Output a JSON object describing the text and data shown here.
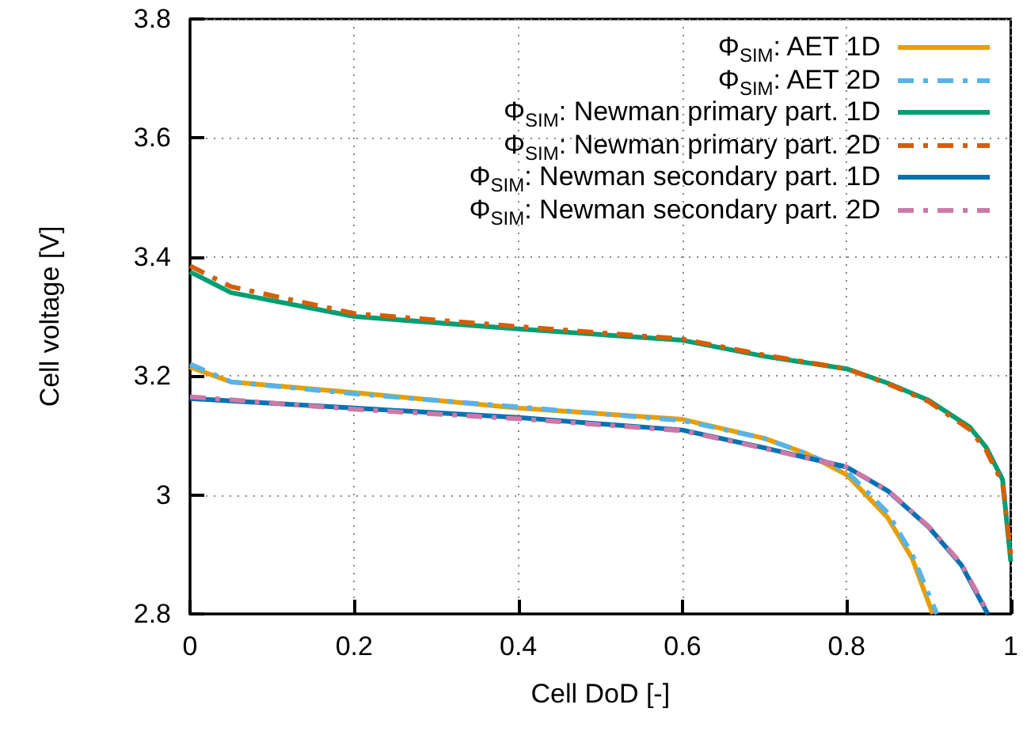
{
  "chart_data": {
    "type": "line",
    "xlabel": "Cell DoD [-]",
    "ylabel": "Cell voltage [V]",
    "xlim": [
      0,
      1
    ],
    "xticks": [
      0,
      0.2,
      0.4,
      0.6,
      0.8,
      1
    ],
    "ylim": [
      2.8,
      3.8
    ],
    "yticks": [
      2.8,
      3,
      3.2,
      3.4,
      3.6,
      3.8
    ],
    "grid": true,
    "legend": "top right",
    "marker": "none",
    "series": [
      {
        "name": "Φ$_{SIM}$: AET 1D",
        "color": "#e69f00",
        "line_style": "solid",
        "x": [
          0,
          0.05,
          0.2,
          0.4,
          0.6,
          0.7,
          0.75,
          0.8,
          0.85,
          0.88,
          0.905
        ],
        "values": [
          3.215,
          3.19,
          3.172,
          3.146,
          3.127,
          3.095,
          3.07,
          3.034,
          2.962,
          2.893,
          2.8
        ]
      },
      {
        "name": "Φ$_{SIM}$: AET 2D",
        "color": "#56b4e9",
        "line_style": "dashed",
        "x": [
          0,
          0.05,
          0.2,
          0.4,
          0.6,
          0.7,
          0.75,
          0.8,
          0.85,
          0.88,
          0.91
        ],
        "values": [
          3.22,
          3.19,
          3.17,
          3.148,
          3.125,
          3.095,
          3.07,
          3.04,
          2.97,
          2.9,
          2.8
        ]
      },
      {
        "name": "Φ$_{SIM}$: Newman primary part. 1D",
        "color": "#009e73",
        "line_style": "solid",
        "x": [
          0,
          0.05,
          0.2,
          0.4,
          0.6,
          0.7,
          0.8,
          0.85,
          0.9,
          0.95,
          0.97,
          0.99,
          1
        ],
        "values": [
          3.375,
          3.34,
          3.3,
          3.279,
          3.26,
          3.233,
          3.212,
          3.188,
          3.159,
          3.114,
          3.08,
          3.026,
          2.888
        ]
      },
      {
        "name": "Φ$_{SIM}$: Newman primary part. 2D",
        "color": "#d55e00",
        "line_style": "dashed",
        "x": [
          0,
          0.05,
          0.2,
          0.4,
          0.6,
          0.7,
          0.8,
          0.85,
          0.9,
          0.95,
          0.97,
          0.99,
          1
        ],
        "values": [
          3.385,
          3.35,
          3.305,
          3.283,
          3.262,
          3.235,
          3.212,
          3.187,
          3.157,
          3.11,
          3.075,
          3.02,
          2.9
        ]
      },
      {
        "name": "Φ$_{SIM}$: Newman secondary part. 1D",
        "color": "#0072b2",
        "line_style": "solid",
        "x": [
          0,
          0.2,
          0.4,
          0.6,
          0.7,
          0.8,
          0.85,
          0.9,
          0.94,
          0.972
        ],
        "values": [
          3.162,
          3.146,
          3.13,
          3.109,
          3.079,
          3.047,
          3.007,
          2.946,
          2.882,
          2.8
        ]
      },
      {
        "name": "Φ$_{SIM}$: Newman secondary part. 2D",
        "color": "#cc79a7",
        "line_style": "dashed",
        "x": [
          0,
          0.2,
          0.4,
          0.6,
          0.7,
          0.8,
          0.85,
          0.9,
          0.94,
          0.973
        ],
        "values": [
          3.165,
          3.144,
          3.128,
          3.108,
          3.078,
          3.047,
          3.008,
          2.947,
          2.884,
          2.8
        ]
      }
    ]
  }
}
